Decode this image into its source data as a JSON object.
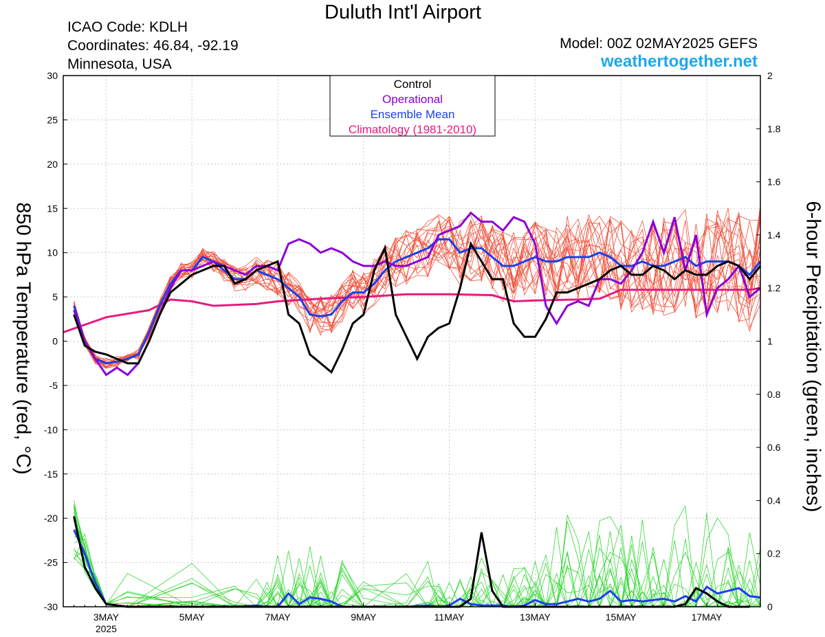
{
  "header": {
    "title": "Duluth Int'l Airport",
    "icao": "ICAO Code: KDLH",
    "coords": "Coordinates: 46.84, -92.19",
    "region": "Minnesota, USA",
    "model": "Model: 00Z 02MAY2025 GEFS",
    "site": "weathertogether.net"
  },
  "chart_data": {
    "type": "line",
    "y_left_label": "850 hPa Temperature (red, °C)",
    "y_right_label": "6-hour Precipitation (green, inches)",
    "y_left_range": [
      -30,
      30
    ],
    "y_left_ticks": [
      "30",
      "25",
      "20",
      "15",
      "10",
      "5",
      "0",
      "-5",
      "-10",
      "-15",
      "-20",
      "-25",
      "-30"
    ],
    "y_right_range": [
      0,
      2
    ],
    "y_right_ticks": [
      "2",
      "1.8",
      "1.6",
      "1.4",
      "1.2",
      "1",
      "0.8",
      "0.6",
      "0.4",
      "0.2",
      "0"
    ],
    "x_range_days": [
      2.0,
      18.25
    ],
    "x_ticks": [
      {
        "day": 3,
        "label": "3MAY",
        "sub": "2025"
      },
      {
        "day": 5,
        "label": "5MAY",
        "sub": ""
      },
      {
        "day": 7,
        "label": "7MAY",
        "sub": ""
      },
      {
        "day": 9,
        "label": "9MAY",
        "sub": ""
      },
      {
        "day": 11,
        "label": "11MAY",
        "sub": ""
      },
      {
        "day": 13,
        "label": "13MAY",
        "sub": ""
      },
      {
        "day": 15,
        "label": "15MAY",
        "sub": ""
      },
      {
        "day": 17,
        "label": "17MAY",
        "sub": ""
      }
    ],
    "legend": [
      {
        "label": "Control",
        "color": "#000000"
      },
      {
        "label": "Operational",
        "color": "#8b00d6"
      },
      {
        "label": "Ensemble Mean",
        "color": "#1a3ff0"
      },
      {
        "label": "Climatology (1981-2010)",
        "color": "#e8197d"
      }
    ],
    "colors": {
      "control": "#000000",
      "operational": "#8b00d6",
      "ensemble_mean": "#1a3ff0",
      "climatology": "#e8197d",
      "members_temp": "#f0503a",
      "members_precip": "#33d633"
    },
    "temperature": {
      "control": [
        [
          2.25,
          3
        ],
        [
          2.5,
          -0.5
        ],
        [
          2.75,
          -1.2
        ],
        [
          3,
          -1.5
        ],
        [
          3.25,
          -2
        ],
        [
          3.5,
          -2.5
        ],
        [
          3.75,
          -2.5
        ],
        [
          4,
          0
        ],
        [
          4.25,
          3
        ],
        [
          4.5,
          5.5
        ],
        [
          4.75,
          6.5
        ],
        [
          5,
          7.5
        ],
        [
          5.25,
          8
        ],
        [
          5.5,
          8.5
        ],
        [
          5.75,
          8.5
        ],
        [
          6,
          6.5
        ],
        [
          6.25,
          7
        ],
        [
          6.5,
          8
        ],
        [
          6.75,
          8.5
        ],
        [
          7,
          9
        ],
        [
          7.25,
          3
        ],
        [
          7.5,
          2
        ],
        [
          7.75,
          -1.5
        ],
        [
          8,
          -2.5
        ],
        [
          8.25,
          -3.5
        ],
        [
          8.5,
          -1
        ],
        [
          8.75,
          2
        ],
        [
          9,
          3
        ],
        [
          9.25,
          8
        ],
        [
          9.5,
          10.5
        ],
        [
          9.75,
          3
        ],
        [
          10,
          0.5
        ],
        [
          10.25,
          -2
        ],
        [
          10.5,
          0.5
        ],
        [
          10.75,
          1.5
        ],
        [
          11,
          2
        ],
        [
          11.25,
          6
        ],
        [
          11.5,
          11
        ],
        [
          11.75,
          9
        ],
        [
          12,
          7
        ],
        [
          12.25,
          7
        ],
        [
          12.5,
          2
        ],
        [
          12.75,
          0.5
        ],
        [
          13,
          0.5
        ],
        [
          13.25,
          2.5
        ],
        [
          13.5,
          5.5
        ],
        [
          13.75,
          5.5
        ],
        [
          14,
          6
        ],
        [
          14.25,
          6.5
        ],
        [
          14.5,
          7
        ],
        [
          14.75,
          8
        ],
        [
          15,
          8.5
        ],
        [
          15.25,
          7.5
        ],
        [
          15.5,
          7.5
        ],
        [
          15.75,
          8.5
        ],
        [
          16,
          8
        ],
        [
          16.25,
          7
        ],
        [
          16.5,
          8
        ],
        [
          16.75,
          7.5
        ],
        [
          17,
          7.5
        ],
        [
          17.25,
          8.5
        ],
        [
          17.5,
          9
        ],
        [
          17.75,
          8.5
        ],
        [
          18,
          7
        ],
        [
          18.25,
          8.5
        ]
      ],
      "operational": [
        [
          2.25,
          3.5
        ],
        [
          2.5,
          0
        ],
        [
          2.75,
          -2
        ],
        [
          3,
          -3.8
        ],
        [
          3.25,
          -3
        ],
        [
          3.5,
          -3.8
        ],
        [
          3.75,
          -2.5
        ],
        [
          4,
          0
        ],
        [
          4.25,
          3
        ],
        [
          4.5,
          6
        ],
        [
          4.75,
          8
        ],
        [
          5,
          8
        ],
        [
          5.25,
          8.5
        ],
        [
          5.5,
          9
        ],
        [
          5.75,
          8.5
        ],
        [
          6,
          8
        ],
        [
          6.25,
          7.5
        ],
        [
          6.5,
          8.5
        ],
        [
          6.75,
          8.5
        ],
        [
          7,
          8
        ],
        [
          7.25,
          11
        ],
        [
          7.5,
          11.5
        ],
        [
          7.75,
          11
        ],
        [
          8,
          10
        ],
        [
          8.25,
          10.5
        ],
        [
          8.5,
          10
        ],
        [
          8.75,
          9
        ],
        [
          9,
          8.5
        ],
        [
          9.25,
          8.5
        ],
        [
          9.5,
          9
        ],
        [
          9.75,
          8.5
        ],
        [
          10,
          8.5
        ],
        [
          10.25,
          9
        ],
        [
          10.5,
          9.5
        ],
        [
          10.75,
          12
        ],
        [
          11,
          12.5
        ],
        [
          11.25,
          13
        ],
        [
          11.5,
          14.5
        ],
        [
          11.75,
          13.5
        ],
        [
          12,
          13.5
        ],
        [
          12.25,
          12.5
        ],
        [
          12.5,
          14
        ],
        [
          12.75,
          13.5
        ],
        [
          13,
          11
        ],
        [
          13.25,
          4
        ],
        [
          13.5,
          2
        ],
        [
          13.75,
          4
        ],
        [
          14,
          4.5
        ],
        [
          14.25,
          4
        ],
        [
          14.5,
          7
        ],
        [
          14.75,
          7
        ],
        [
          15,
          6.5
        ],
        [
          15.25,
          8
        ],
        [
          15.5,
          10
        ],
        [
          15.75,
          13.5
        ],
        [
          16,
          10
        ],
        [
          16.25,
          14
        ],
        [
          16.5,
          8
        ],
        [
          16.75,
          12
        ],
        [
          17,
          3
        ],
        [
          17.25,
          6
        ],
        [
          17.5,
          7
        ],
        [
          17.75,
          8.5
        ],
        [
          18,
          5
        ],
        [
          18.25,
          6
        ]
      ],
      "ensemble_mean": [
        [
          2.25,
          4
        ],
        [
          2.5,
          0
        ],
        [
          2.75,
          -2
        ],
        [
          3,
          -2.5
        ],
        [
          3.25,
          -2.3
        ],
        [
          3.5,
          -2
        ],
        [
          3.75,
          -1.5
        ],
        [
          4,
          1
        ],
        [
          4.25,
          4
        ],
        [
          4.5,
          6.5
        ],
        [
          4.75,
          8
        ],
        [
          5,
          8
        ],
        [
          5.25,
          9.5
        ],
        [
          5.5,
          9
        ],
        [
          5.75,
          8
        ],
        [
          6,
          7
        ],
        [
          6.25,
          7
        ],
        [
          6.5,
          8
        ],
        [
          6.75,
          7.5
        ],
        [
          7,
          7
        ],
        [
          7.25,
          6
        ],
        [
          7.5,
          5
        ],
        [
          7.75,
          3
        ],
        [
          8,
          2.8
        ],
        [
          8.25,
          3
        ],
        [
          8.5,
          4.5
        ],
        [
          8.75,
          5.5
        ],
        [
          9,
          5.5
        ],
        [
          9.25,
          6.5
        ],
        [
          9.5,
          8
        ],
        [
          9.75,
          9
        ],
        [
          10,
          9.5
        ],
        [
          10.25,
          10
        ],
        [
          10.5,
          10.5
        ],
        [
          10.75,
          11.5
        ],
        [
          11,
          11.5
        ],
        [
          11.25,
          10
        ],
        [
          11.5,
          10.5
        ],
        [
          11.75,
          10.5
        ],
        [
          12,
          9.5
        ],
        [
          12.25,
          8.5
        ],
        [
          12.5,
          8.5
        ],
        [
          12.75,
          9
        ],
        [
          13,
          9.5
        ],
        [
          13.25,
          9
        ],
        [
          13.5,
          9
        ],
        [
          13.75,
          9.5
        ],
        [
          14,
          9.5
        ],
        [
          14.25,
          9.5
        ],
        [
          14.5,
          10
        ],
        [
          14.75,
          9.5
        ],
        [
          15,
          8.5
        ],
        [
          15.25,
          8.5
        ],
        [
          15.5,
          9
        ],
        [
          15.75,
          8.5
        ],
        [
          16,
          8.5
        ],
        [
          16.25,
          9
        ],
        [
          16.5,
          9.5
        ],
        [
          16.75,
          8.5
        ],
        [
          17,
          9
        ],
        [
          17.25,
          9
        ],
        [
          17.5,
          9
        ],
        [
          17.75,
          8.5
        ],
        [
          18,
          7.5
        ],
        [
          18.25,
          9
        ]
      ],
      "climatology": [
        [
          2,
          1
        ],
        [
          3,
          2.7
        ],
        [
          4,
          3.5
        ],
        [
          4.5,
          4.7
        ],
        [
          5,
          4.5
        ],
        [
          5.5,
          4
        ],
        [
          6.5,
          4.2
        ],
        [
          7,
          4.5
        ],
        [
          8,
          4.8
        ],
        [
          9,
          5
        ],
        [
          10,
          5.3
        ],
        [
          11,
          5.3
        ],
        [
          12,
          5.2
        ],
        [
          12.5,
          4.5
        ],
        [
          13,
          4.6
        ],
        [
          14,
          4.7
        ],
        [
          14.5,
          4.8
        ],
        [
          15,
          5.8
        ],
        [
          15.5,
          5.8
        ],
        [
          16,
          5.8
        ],
        [
          17,
          5.8
        ],
        [
          17.5,
          5.8
        ],
        [
          18,
          5.8
        ],
        [
          18.25,
          6
        ]
      ]
    },
    "precipitation": {
      "control": [
        [
          2.25,
          0.34
        ],
        [
          2.5,
          0.15
        ],
        [
          2.75,
          0.07
        ],
        [
          3,
          0.01
        ],
        [
          3.5,
          0
        ],
        [
          6,
          0
        ],
        [
          8,
          0
        ],
        [
          10,
          0
        ],
        [
          11.25,
          0
        ],
        [
          11.5,
          0.03
        ],
        [
          11.75,
          0.28
        ],
        [
          12,
          0.06
        ],
        [
          12.25,
          0
        ],
        [
          12.5,
          0
        ],
        [
          13,
          0
        ],
        [
          14,
          0
        ],
        [
          15,
          0
        ],
        [
          16,
          0
        ],
        [
          16.25,
          0
        ],
        [
          16.5,
          0.01
        ],
        [
          16.75,
          0.07
        ],
        [
          17,
          0.05
        ],
        [
          17.25,
          0.02
        ],
        [
          17.5,
          0
        ],
        [
          18,
          0
        ]
      ],
      "ensemble_mean": [
        [
          2.25,
          0.29
        ],
        [
          2.5,
          0.2
        ],
        [
          2.75,
          0.09
        ],
        [
          3,
          0.01
        ],
        [
          3.5,
          0
        ],
        [
          5,
          0
        ],
        [
          6,
          0
        ],
        [
          6.5,
          0.005
        ],
        [
          6.75,
          0
        ],
        [
          7,
          0
        ],
        [
          7.25,
          0.05
        ],
        [
          7.5,
          0.01
        ],
        [
          7.75,
          0.035
        ],
        [
          8,
          0.03
        ],
        [
          8.25,
          0.02
        ],
        [
          8.5,
          0
        ],
        [
          9,
          0
        ],
        [
          10,
          0
        ],
        [
          10.5,
          0.005
        ],
        [
          10.75,
          0
        ],
        [
          11,
          0.005
        ],
        [
          11.25,
          0.03
        ],
        [
          11.5,
          0.01
        ],
        [
          11.75,
          0.005
        ],
        [
          12,
          0.005
        ],
        [
          12.25,
          0.005
        ],
        [
          12.5,
          0
        ],
        [
          12.75,
          0.005
        ],
        [
          13,
          0.025
        ],
        [
          13.25,
          0.01
        ],
        [
          13.5,
          0.01
        ],
        [
          13.75,
          0.02
        ],
        [
          14,
          0.03
        ],
        [
          14.25,
          0.02
        ],
        [
          14.5,
          0.03
        ],
        [
          14.75,
          0.06
        ],
        [
          15,
          0.02
        ],
        [
          15.25,
          0.025
        ],
        [
          15.5,
          0.02
        ],
        [
          15.75,
          0.025
        ],
        [
          16,
          0.03
        ],
        [
          16.25,
          0.02
        ],
        [
          16.5,
          0.04
        ],
        [
          16.75,
          0.02
        ],
        [
          17,
          0.075
        ],
        [
          17.25,
          0.05
        ],
        [
          17.5,
          0.06
        ],
        [
          17.75,
          0.07
        ],
        [
          18,
          0.04
        ],
        [
          18.25,
          0.035
        ]
      ]
    }
  }
}
